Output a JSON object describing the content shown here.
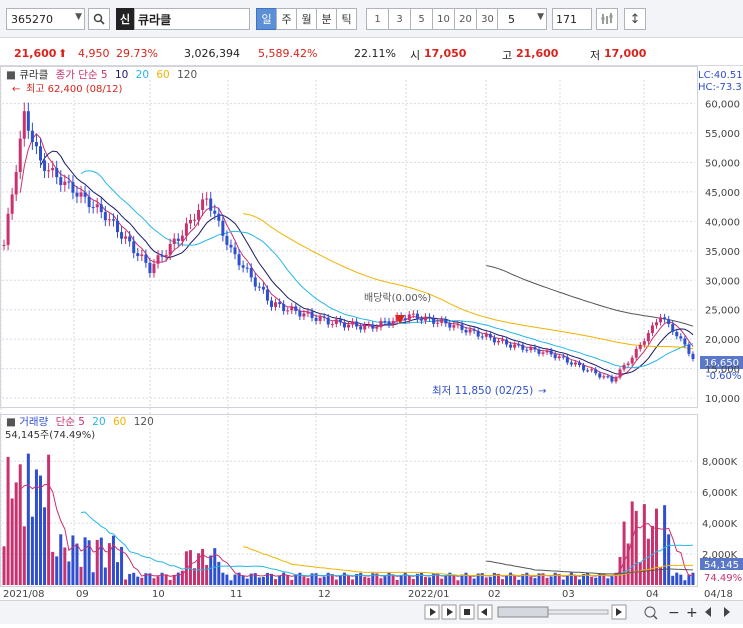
{
  "toolbar": {
    "code": "365270",
    "new_label": "신",
    "name": "큐라클",
    "periods": [
      "일",
      "주",
      "월",
      "분",
      "틱"
    ],
    "active_period": "일",
    "minute_buttons": [
      "1",
      "3",
      "5",
      "10",
      "20",
      "30"
    ],
    "interval_value": "5",
    "count_value": "171",
    "icons": [
      "search-icon",
      "chevron-down-icon",
      "tick-settings-icon",
      "vertical-arrows-icon"
    ]
  },
  "quote": {
    "price": "21,600",
    "change": "4,950",
    "change_rate": "29.73%",
    "volume": "3,026,394",
    "volume_rate": "5,589.42%",
    "turnover_rate": "22.11%",
    "open_label": "시",
    "open": "17,050",
    "high_label": "고",
    "high": "21,600",
    "low_label": "저",
    "low": "17,000"
  },
  "price_panel": {
    "name": "큐라클",
    "ma_label": "종가 단순 5",
    "ma_periods": [
      "10",
      "20",
      "60",
      "120"
    ],
    "lc": "LC:40.51",
    "hc": "HC:-73.3",
    "max_label": "최고 62,400 (08/12)",
    "min_label": "최저 11,850 (02/25)",
    "dividend_label": "배당락(0.00%)",
    "current_price_tag": "16,650",
    "current_rate": "-0.60%",
    "y_ticks": [
      "60,000",
      "55,000",
      "50,000",
      "45,000",
      "40,000",
      "35,000",
      "30,000",
      "25,000",
      "20,000",
      "15,000",
      "10,000"
    ]
  },
  "volume_panel": {
    "name": "거래량",
    "ma_label": "단순 5",
    "ma_periods": [
      "20",
      "60",
      "120"
    ],
    "last_value_label": "54,145주(74.49%)",
    "current_tag": "54,145",
    "current_rate": "74.49%",
    "y_ticks": [
      "8,000K",
      "6,000K",
      "4,000K",
      "2,000K"
    ]
  },
  "x_axis": {
    "labels": [
      "2021/08",
      "09",
      "10",
      "11",
      "12",
      "2022/01",
      "02",
      "03",
      "04",
      "04/18"
    ]
  },
  "colors": {
    "up": "#c8326e",
    "down": "#2f4fcf",
    "ma5": "#c8326e",
    "ma10": "#1a1a6a",
    "ma20": "#25b7e6",
    "ma60": "#f2b300",
    "ma120": "#555555",
    "accent": "#d9231b"
  }
}
